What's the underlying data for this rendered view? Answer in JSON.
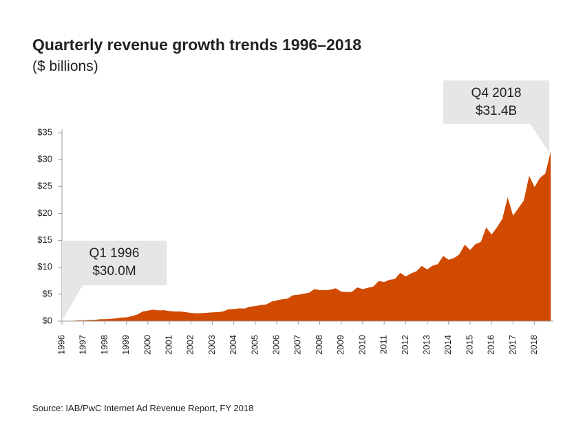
{
  "chart_data": {
    "type": "area",
    "title": "Quarterly revenue growth trends 1996–2018",
    "subtitle": "($ billions)",
    "source": "Source: IAB/PwC Internet Ad Revenue Report,  FY 2018",
    "color": "#d04a02",
    "x": [
      1996,
      1996.25,
      1996.5,
      1996.75,
      1997,
      1997.25,
      1997.5,
      1997.75,
      1998,
      1998.25,
      1998.5,
      1998.75,
      1999,
      1999.25,
      1999.5,
      1999.75,
      2000,
      2000.25,
      2000.5,
      2000.75,
      2001,
      2001.25,
      2001.5,
      2001.75,
      2002,
      2002.25,
      2002.5,
      2002.75,
      2003,
      2003.25,
      2003.5,
      2003.75,
      2004,
      2004.25,
      2004.5,
      2004.75,
      2005,
      2005.25,
      2005.5,
      2005.75,
      2006,
      2006.25,
      2006.5,
      2006.75,
      2007,
      2007.25,
      2007.5,
      2007.75,
      2008,
      2008.25,
      2008.5,
      2008.75,
      2009,
      2009.25,
      2009.5,
      2009.75,
      2010,
      2010.25,
      2010.5,
      2010.75,
      2011,
      2011.25,
      2011.5,
      2011.75,
      2012,
      2012.25,
      2012.5,
      2012.75,
      2013,
      2013.25,
      2013.5,
      2013.75,
      2014,
      2014.25,
      2014.5,
      2014.75,
      2015,
      2015.25,
      2015.5,
      2015.75,
      2016,
      2016.25,
      2016.5,
      2016.75,
      2017,
      2017.25,
      2017.5,
      2017.75,
      2018,
      2018.25,
      2018.5,
      2018.75
    ],
    "values": [
      0.03,
      0.05,
      0.07,
      0.12,
      0.13,
      0.21,
      0.23,
      0.34,
      0.35,
      0.42,
      0.49,
      0.66,
      0.69,
      0.93,
      1.2,
      1.78,
      1.95,
      2.12,
      1.99,
      2.02,
      1.87,
      1.79,
      1.79,
      1.67,
      1.52,
      1.45,
      1.47,
      1.55,
      1.63,
      1.66,
      1.79,
      2.18,
      2.23,
      2.37,
      2.33,
      2.69,
      2.8,
      2.99,
      3.08,
      3.61,
      3.85,
      4.06,
      4.18,
      4.79,
      4.9,
      5.1,
      5.27,
      5.94,
      5.77,
      5.75,
      5.84,
      6.1,
      5.47,
      5.4,
      5.45,
      6.26,
      5.94,
      6.19,
      6.43,
      7.45,
      7.26,
      7.68,
      7.82,
      8.97,
      8.31,
      8.85,
      9.26,
      10.25,
      9.6,
      10.3,
      10.6,
      12.1,
      11.4,
      11.7,
      12.4,
      14.2,
      13.2,
      14.3,
      14.7,
      17.4,
      16.1,
      17.4,
      19,
      23,
      19.6,
      21,
      22.4,
      27,
      24.9,
      26.6,
      27.4,
      31.4
    ],
    "xlim": [
      1996,
      2018.75
    ],
    "xticks": [
      1996,
      1997,
      1998,
      1999,
      2000,
      2001,
      2002,
      2003,
      2004,
      2005,
      2006,
      2007,
      2008,
      2009,
      2010,
      2011,
      2012,
      2013,
      2014,
      2015,
      2016,
      2017,
      2018
    ],
    "ylim": [
      0,
      35
    ],
    "yticks": [
      {
        "value": 0,
        "label": "$0"
      },
      {
        "value": 5,
        "label": "$5"
      },
      {
        "value": 10,
        "label": "$10"
      },
      {
        "value": 15,
        "label": "$15"
      },
      {
        "value": 20,
        "label": "$20"
      },
      {
        "value": 25,
        "label": "$25"
      },
      {
        "value": 30,
        "label": "$30"
      },
      {
        "value": 35,
        "label": "$35"
      }
    ],
    "annotations": [
      {
        "lines": [
          "Q1 1996",
          "$30.0M"
        ]
      },
      {
        "lines": [
          "Q4 2018",
          "$31.4B"
        ]
      }
    ]
  }
}
